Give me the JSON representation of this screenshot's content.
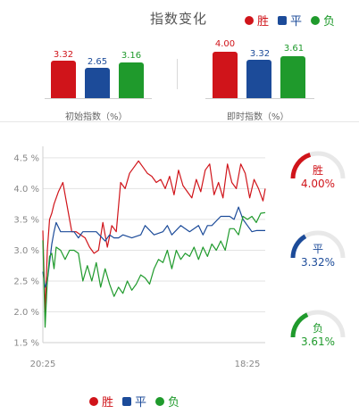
{
  "header": {
    "title": "指数变化"
  },
  "legend": [
    {
      "label": "胜",
      "color": "#d0141a",
      "shape": "dot"
    },
    {
      "label": "平",
      "color": "#1c4b99",
      "shape": "square"
    },
    {
      "label": "负",
      "color": "#1f9a2c",
      "shape": "dot"
    }
  ],
  "initial": {
    "label": "初始指数（%）",
    "values": [
      {
        "label": "3.32",
        "value": 3.32
      },
      {
        "label": "2.65",
        "value": 2.65
      },
      {
        "label": "3.16",
        "value": 3.16
      }
    ]
  },
  "current": {
    "label": "即时指数（%）",
    "values": [
      {
        "label": "4.00",
        "value": 4.0
      },
      {
        "label": "3.32",
        "value": 3.32
      },
      {
        "label": "3.61",
        "value": 3.61
      }
    ]
  },
  "gauges": [
    {
      "name": "胜",
      "value_label": "4.00%",
      "value": 4.0,
      "color": "#d0141a"
    },
    {
      "name": "平",
      "value_label": "3.32%",
      "value": 3.32,
      "color": "#1c4b99"
    },
    {
      "name": "负",
      "value_label": "3.61%",
      "value": 3.61,
      "color": "#1f9a2c"
    }
  ],
  "chart_data": {
    "type": "line",
    "title": "",
    "xlabel": "",
    "ylabel": "",
    "x_ticks": [
      "20:25",
      "18:25"
    ],
    "y_ticks": [
      "1.5 %",
      "2.0 %",
      "2.5 %",
      "3.0 %",
      "3.5 %",
      "4.0 %",
      "4.5 %"
    ],
    "ylim": [
      1.5,
      4.6
    ],
    "grid": true,
    "series": [
      {
        "name": "胜",
        "color": "#d0141a",
        "x": [
          0,
          1,
          2,
          3,
          4,
          5,
          7,
          9,
          11,
          13,
          15,
          17,
          19,
          21,
          23,
          25,
          27,
          29,
          31,
          33,
          35,
          37,
          39,
          41,
          43,
          45,
          47,
          49,
          51,
          53,
          55,
          57,
          59,
          61,
          63,
          65,
          67,
          69,
          71,
          73,
          75,
          77,
          79,
          81,
          83,
          85,
          87,
          89,
          91,
          93,
          95,
          97,
          99,
          100
        ],
        "y": [
          3.32,
          2.0,
          3.0,
          3.5,
          3.6,
          3.75,
          3.95,
          4.1,
          3.7,
          3.3,
          3.3,
          3.25,
          3.2,
          3.05,
          2.95,
          3.0,
          3.45,
          3.05,
          3.4,
          3.3,
          4.1,
          4.0,
          4.25,
          4.35,
          4.45,
          4.35,
          4.25,
          4.2,
          4.1,
          4.15,
          4.0,
          4.2,
          3.9,
          4.3,
          4.05,
          3.95,
          3.85,
          4.15,
          3.95,
          4.3,
          4.4,
          3.9,
          4.1,
          3.85,
          4.4,
          4.1,
          4.0,
          4.4,
          4.25,
          3.85,
          4.15,
          4.0,
          3.8,
          4.0
        ]
      },
      {
        "name": "平",
        "color": "#1c4b99",
        "x": [
          0,
          1,
          2,
          3,
          4,
          5,
          6,
          8,
          10,
          12,
          14,
          16,
          18,
          20,
          24,
          28,
          30,
          32,
          34,
          36,
          40,
          44,
          46,
          50,
          54,
          56,
          58,
          62,
          66,
          70,
          72,
          74,
          76,
          80,
          84,
          86,
          88,
          90,
          92,
          94,
          96,
          100
        ],
        "y": [
          2.65,
          2.4,
          2.5,
          2.8,
          3.1,
          3.3,
          3.45,
          3.3,
          3.3,
          3.3,
          3.3,
          3.2,
          3.3,
          3.3,
          3.3,
          3.15,
          3.25,
          3.2,
          3.2,
          3.25,
          3.2,
          3.25,
          3.4,
          3.25,
          3.3,
          3.4,
          3.25,
          3.4,
          3.3,
          3.4,
          3.25,
          3.4,
          3.4,
          3.55,
          3.55,
          3.5,
          3.7,
          3.5,
          3.4,
          3.3,
          3.32,
          3.32
        ]
      },
      {
        "name": "负",
        "color": "#1f9a2c",
        "x": [
          0,
          1,
          2,
          3,
          4,
          5,
          6,
          8,
          10,
          12,
          14,
          16,
          18,
          20,
          22,
          24,
          26,
          28,
          30,
          32,
          34,
          36,
          38,
          40,
          42,
          44,
          46,
          48,
          50,
          52,
          54,
          56,
          58,
          60,
          62,
          64,
          66,
          68,
          70,
          72,
          74,
          76,
          78,
          80,
          82,
          84,
          86,
          88,
          90,
          92,
          94,
          96,
          98,
          100
        ],
        "y": [
          3.16,
          1.75,
          2.5,
          2.9,
          2.95,
          2.7,
          3.05,
          3.0,
          2.85,
          3.0,
          3.0,
          2.95,
          2.5,
          2.75,
          2.5,
          2.8,
          2.4,
          2.7,
          2.45,
          2.25,
          2.4,
          2.3,
          2.5,
          2.35,
          2.45,
          2.6,
          2.55,
          2.45,
          2.7,
          2.85,
          2.8,
          3.0,
          2.7,
          3.0,
          2.85,
          2.95,
          2.9,
          3.05,
          2.85,
          3.05,
          2.9,
          3.1,
          3.0,
          3.15,
          3.0,
          3.35,
          3.35,
          3.25,
          3.55,
          3.5,
          3.55,
          3.45,
          3.6,
          3.61
        ]
      }
    ]
  }
}
